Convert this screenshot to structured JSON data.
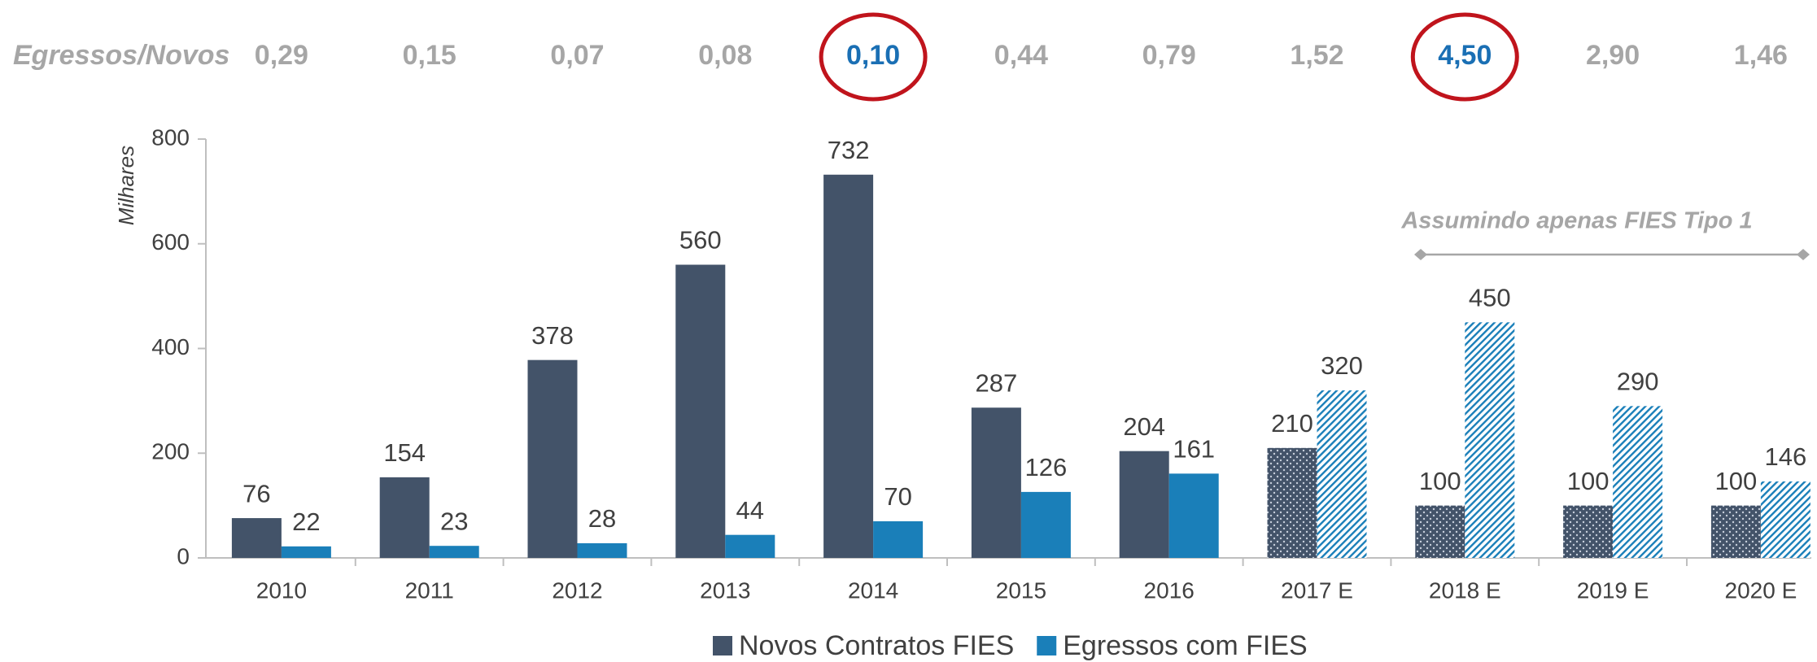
{
  "chart_data": {
    "type": "bar",
    "categories": [
      "2010",
      "2011",
      "2012",
      "2013",
      "2014",
      "2015",
      "2016",
      "2017 E",
      "2018 E",
      "2019 E",
      "2020 E"
    ],
    "series": [
      {
        "name": "Novos Contratos FIES",
        "color": "#435369",
        "values": [
          76,
          154,
          378,
          560,
          732,
          287,
          204,
          210,
          100,
          100,
          100
        ]
      },
      {
        "name": "Egressos com FIES",
        "color": "#1a7fb9",
        "values": [
          22,
          23,
          28,
          44,
          70,
          126,
          161,
          320,
          450,
          290,
          146
        ]
      }
    ],
    "ylabel": "Milhares",
    "ylim": [
      0,
      800
    ],
    "yticks": [
      0,
      200,
      400,
      600,
      800
    ],
    "hatched_from": "2017 E",
    "ratio_row": {
      "label": "Egressos/Novos",
      "values": [
        0.29,
        0.15,
        0.07,
        0.08,
        0.1,
        0.44,
        0.79,
        1.52,
        4.5,
        2.9,
        1.46
      ],
      "value_labels": [
        "0,29",
        "0,15",
        "0,07",
        "0,08",
        "0,10",
        "0,44",
        "0,79",
        "1,52",
        "4,50",
        "2,90",
        "1,46"
      ],
      "highlighted": [
        4,
        8
      ],
      "highlight_color": "#1a6fb4",
      "circle_color": "#c0141c"
    },
    "annotation": "Assumindo apenas FIES Tipo 1",
    "legend": "bottom"
  }
}
